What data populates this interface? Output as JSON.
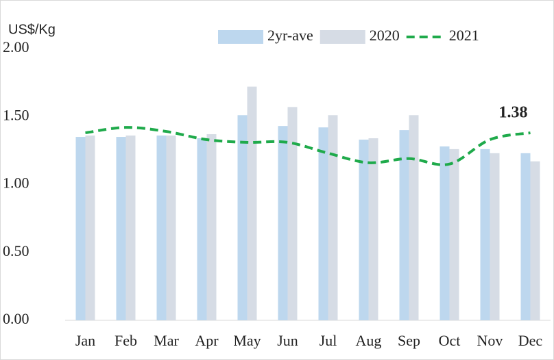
{
  "chart_data": {
    "type": "bar",
    "y_label": "US$/Kg",
    "categories": [
      "Jan",
      "Feb",
      "Mar",
      "Apr",
      "May",
      "Jun",
      "Jul",
      "Aug",
      "Sep",
      "Oct",
      "Nov",
      "Dec"
    ],
    "series": [
      {
        "name": "2yr-ave",
        "type": "bar",
        "color": "#bdd7ee",
        "values": [
          1.35,
          1.35,
          1.36,
          1.34,
          1.51,
          1.43,
          1.42,
          1.33,
          1.4,
          1.28,
          1.26,
          1.23
        ]
      },
      {
        "name": "2020",
        "type": "bar",
        "color": "#d6dce5",
        "values": [
          1.36,
          1.36,
          1.36,
          1.37,
          1.72,
          1.57,
          1.51,
          1.34,
          1.51,
          1.26,
          1.23,
          1.17
        ]
      },
      {
        "name": "2021",
        "type": "line",
        "color": "#1faa4b",
        "values": [
          1.38,
          1.42,
          1.39,
          1.33,
          1.31,
          1.31,
          1.23,
          1.16,
          1.19,
          1.15,
          1.33,
          1.38
        ]
      }
    ],
    "annotated_point": 11,
    "ylim": [
      0,
      2
    ],
    "yticks": [
      {
        "value": 0,
        "label": "0.00"
      },
      {
        "value": 0.5,
        "label": "0.50"
      },
      {
        "value": 1,
        "label": "1.00"
      },
      {
        "value": 1.5,
        "label": "1.50"
      },
      {
        "value": 2,
        "label": "2.00"
      }
    ],
    "grid": false,
    "legend": "top-right"
  }
}
